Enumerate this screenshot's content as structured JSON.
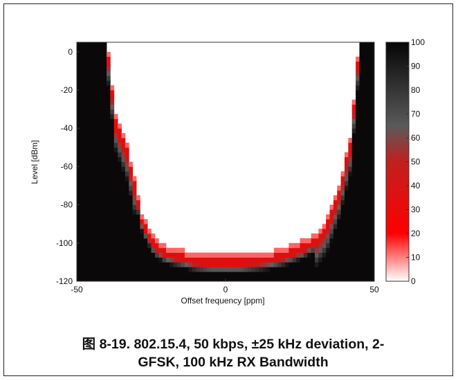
{
  "caption": {
    "line1": "图 8-19. 802.15.4, 50 kbps, ±25 kHz deviation, 2-",
    "line2": "GFSK, 100 kHz RX Bandwidth"
  },
  "colors": {
    "black": "#0d0a0a",
    "red": "#ff0000",
    "white": "#ffffff"
  },
  "chart_data": {
    "type": "heatmap",
    "title": "",
    "xlabel": "Offset frequency [ppm]",
    "ylabel": "Level [dBm]",
    "xlim": [
      -50,
      50
    ],
    "ylim": [
      -120,
      5
    ],
    "xticks": [
      "-50",
      "0",
      "50"
    ],
    "yticks": [
      "0",
      "-20",
      "-40",
      "-60",
      "-80",
      "-100",
      "-120"
    ],
    "colorbar": {
      "range": [
        0,
        100
      ],
      "ticks": [
        "0",
        "10",
        "20",
        "30",
        "40",
        "50",
        "60",
        "70",
        "80",
        "90",
        "100"
      ],
      "colormap": "white-red-black"
    },
    "pass_region_lower_boundary": {
      "offset_ppm": [
        -46,
        -40,
        -37,
        -33,
        -28,
        -24,
        -20,
        -15,
        -10,
        -5,
        0,
        5,
        10,
        15,
        20,
        25,
        30,
        34,
        38,
        42,
        45,
        46
      ],
      "level_dbm": [
        5,
        5,
        -38,
        -54,
        -90,
        -102,
        -106,
        -108,
        -110,
        -111,
        -111,
        -111,
        -110,
        -109,
        -107,
        -104,
        -100,
        -92,
        -75,
        -50,
        5,
        5
      ]
    }
  }
}
